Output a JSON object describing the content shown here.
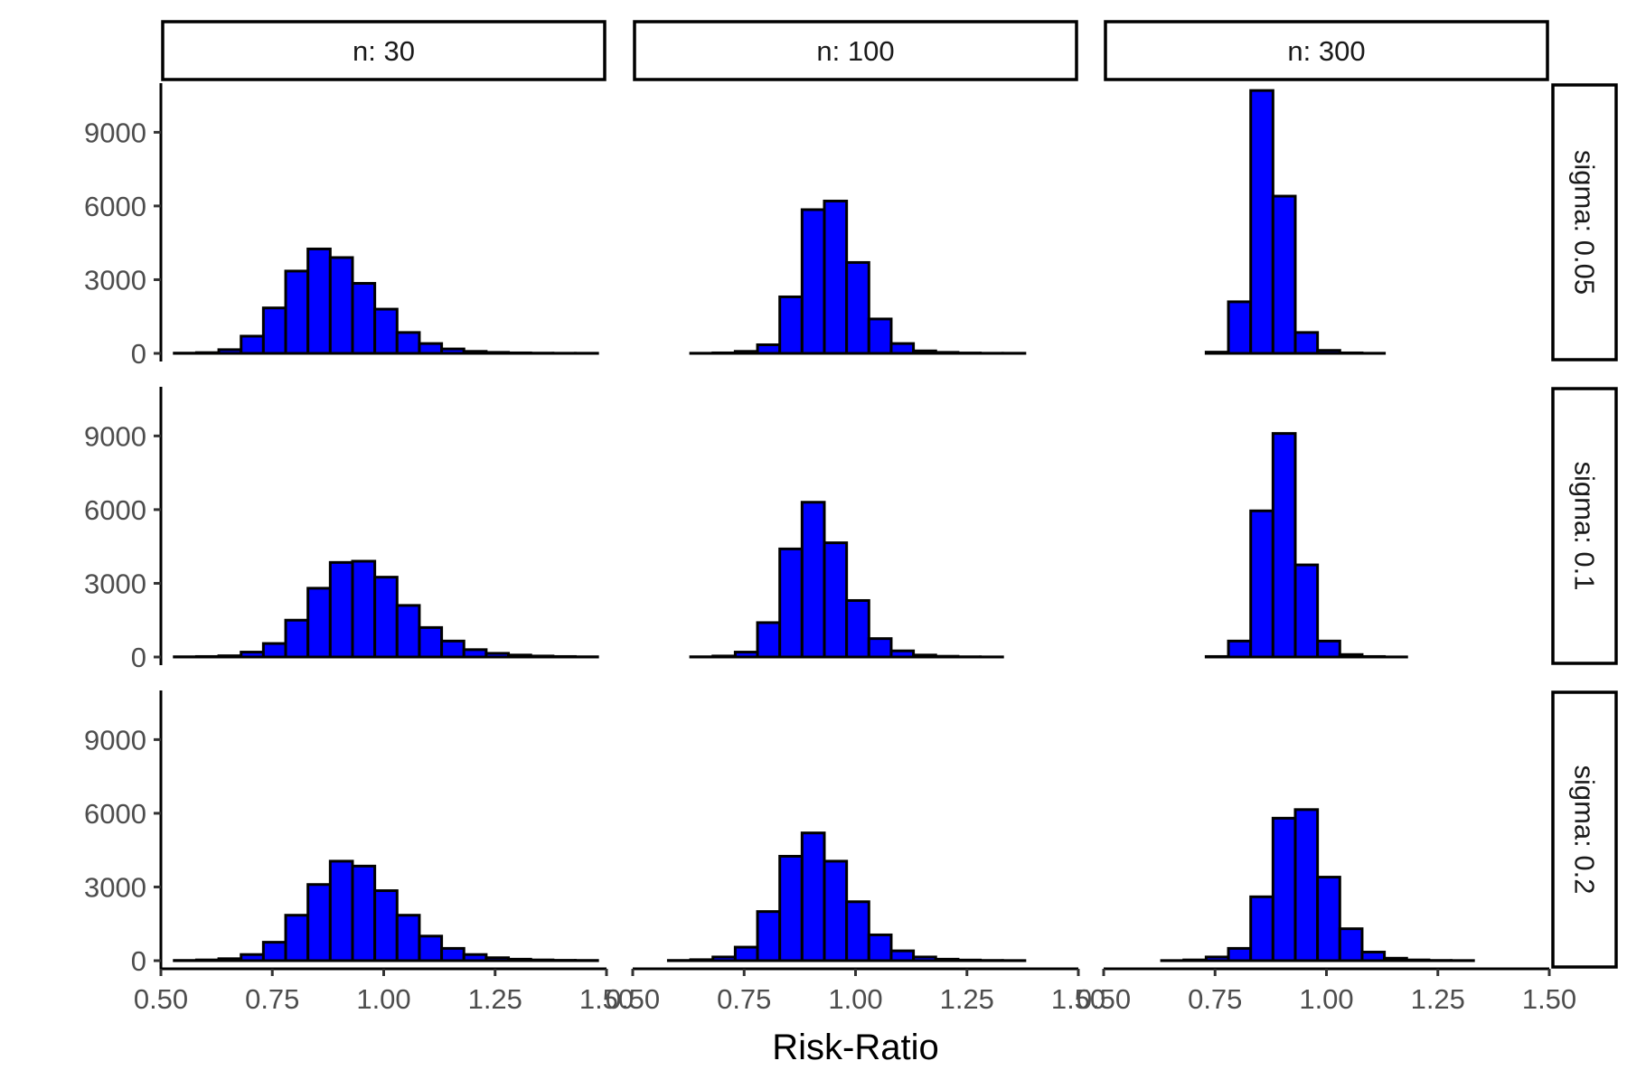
{
  "chart_data": {
    "type": "histogram",
    "facet_cols": [
      {
        "label": "n: 30"
      },
      {
        "label": "n: 100"
      },
      {
        "label": "n: 300"
      }
    ],
    "facet_rows": [
      {
        "label": "sigma: 0.05"
      },
      {
        "label": "sigma: 0.1"
      },
      {
        "label": "sigma: 0.2"
      }
    ],
    "xlabel": "Risk-Ratio",
    "ylabel": "",
    "xlim": [
      0.5,
      1.5
    ],
    "ylim": [
      0,
      11000
    ],
    "x_ticks": [
      0.5,
      0.75,
      1.0,
      1.25,
      1.5
    ],
    "x_tick_labels": [
      "0.50",
      "0.75",
      "1.00",
      "1.25",
      "1.50"
    ],
    "y_ticks": [
      0,
      3000,
      6000,
      9000
    ],
    "y_tick_labels": [
      "0",
      "3000",
      "6000",
      "9000"
    ],
    "bin_edges": [
      0.53,
      0.58,
      0.63,
      0.68,
      0.73,
      0.78,
      0.83,
      0.88,
      0.93,
      0.98,
      1.03,
      1.08,
      1.13,
      1.18,
      1.23,
      1.28,
      1.33,
      1.38,
      1.43,
      1.48
    ],
    "bar_color": "#0000ff",
    "bar_outline": "#000000",
    "panels": [
      {
        "row": 0,
        "col": 0,
        "values": [
          10,
          30,
          150,
          700,
          1850,
          3350,
          4250,
          3900,
          2850,
          1800,
          850,
          400,
          180,
          80,
          40,
          20,
          10,
          5,
          5
        ]
      },
      {
        "row": 0,
        "col": 1,
        "values": [
          0,
          0,
          5,
          20,
          80,
          350,
          2300,
          5850,
          6200,
          3700,
          1400,
          400,
          100,
          40,
          15,
          5,
          5,
          0,
          0
        ]
      },
      {
        "row": 0,
        "col": 2,
        "values": [
          0,
          0,
          0,
          0,
          50,
          2100,
          10700,
          6400,
          850,
          120,
          20,
          5,
          0,
          0,
          0,
          0,
          0,
          0,
          0
        ]
      },
      {
        "row": 1,
        "col": 0,
        "values": [
          10,
          20,
          50,
          200,
          550,
          1500,
          2800,
          3850,
          3900,
          3250,
          2100,
          1200,
          650,
          300,
          150,
          80,
          40,
          20,
          10
        ]
      },
      {
        "row": 1,
        "col": 1,
        "values": [
          0,
          0,
          10,
          40,
          200,
          1400,
          4400,
          6300,
          4650,
          2300,
          750,
          250,
          80,
          30,
          10,
          5,
          0,
          0,
          0
        ]
      },
      {
        "row": 1,
        "col": 2,
        "values": [
          0,
          0,
          0,
          0,
          20,
          650,
          5950,
          9100,
          3750,
          650,
          100,
          20,
          5,
          0,
          0,
          0,
          0,
          0,
          0
        ]
      },
      {
        "row": 2,
        "col": 0,
        "values": [
          10,
          30,
          80,
          250,
          750,
          1850,
          3100,
          4050,
          3850,
          2850,
          1850,
          1000,
          500,
          250,
          120,
          60,
          30,
          15,
          10
        ]
      },
      {
        "row": 2,
        "col": 1,
        "values": [
          0,
          10,
          40,
          150,
          550,
          2000,
          4250,
          5200,
          4050,
          2400,
          1050,
          400,
          150,
          60,
          25,
          10,
          5,
          0,
          0
        ]
      },
      {
        "row": 2,
        "col": 2,
        "values": [
          0,
          0,
          5,
          30,
          150,
          500,
          2600,
          5800,
          6150,
          3400,
          1300,
          350,
          100,
          30,
          10,
          5,
          0,
          0,
          0
        ]
      }
    ]
  }
}
